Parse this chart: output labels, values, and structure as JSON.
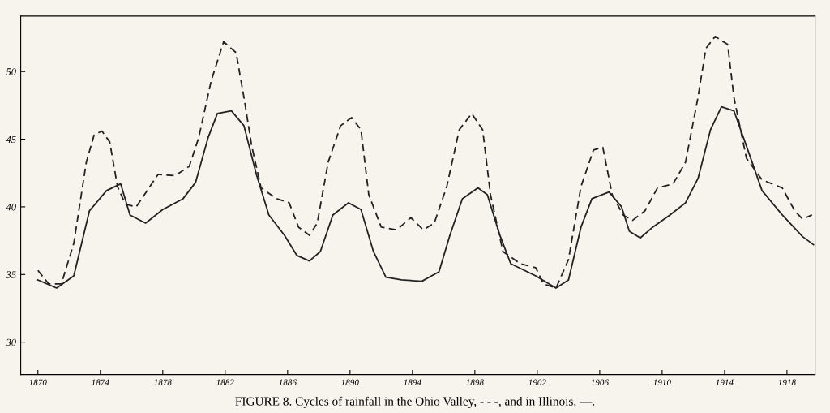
{
  "chart_data": {
    "type": "line",
    "annotations": [
      "FIGURE 8. Cycles of rainfall in the Ohio Valley, - - -, and in Illinois, —."
    ],
    "xlim": [
      1868.9,
      1919.8
    ],
    "ylim": [
      27.6,
      54.1
    ],
    "xticks": [
      1870,
      1874,
      1878,
      1882,
      1886,
      1890,
      1894,
      1898,
      1902,
      1906,
      1910,
      1914,
      1918
    ],
    "yticks": [
      30,
      35,
      40,
      45,
      50
    ],
    "series": [
      {
        "color": "#222222",
        "line_style": "dashed",
        "x": [
          1870.0,
          1870.7,
          1871.5,
          1872.3,
          1873.1,
          1873.6,
          1874.1,
          1874.6,
          1875.1,
          1875.6,
          1876.3,
          1877.0,
          1877.7,
          1878.8,
          1879.7,
          1880.3,
          1881.1,
          1881.9,
          1882.7,
          1883.2,
          1883.7,
          1884.3,
          1885.3,
          1886.1,
          1886.7,
          1887.4,
          1887.9,
          1888.6,
          1889.4,
          1890.1,
          1890.7,
          1891.2,
          1892.0,
          1893.0,
          1893.9,
          1894.7,
          1895.4,
          1896.2,
          1897.0,
          1897.8,
          1898.5,
          1899.0,
          1899.8,
          1900.9,
          1901.9,
          1902.4,
          1903.2,
          1904.0,
          1904.8,
          1905.6,
          1906.2,
          1906.8,
          1907.5,
          1908.1,
          1908.9,
          1909.7,
          1910.7,
          1911.5,
          1912.3,
          1912.8,
          1913.4,
          1914.2,
          1914.6,
          1915.4,
          1916.4,
          1917.7,
          1918.5,
          1919.0,
          1919.6
        ],
        "values": [
          35.3,
          34.3,
          34.3,
          37.3,
          43.3,
          45.3,
          45.6,
          44.8,
          41.5,
          40.2,
          40.0,
          41.2,
          42.4,
          42.3,
          43.0,
          45.1,
          49.3,
          52.2,
          51.4,
          48.1,
          44.5,
          41.4,
          40.6,
          40.3,
          38.5,
          37.9,
          38.8,
          43.3,
          46.0,
          46.6,
          45.7,
          40.9,
          38.5,
          38.3,
          39.2,
          38.3,
          38.8,
          41.5,
          45.7,
          46.9,
          45.7,
          40.9,
          36.7,
          35.8,
          35.5,
          34.3,
          34.0,
          36.1,
          41.5,
          44.2,
          44.4,
          40.9,
          39.4,
          39.0,
          39.7,
          41.4,
          41.7,
          43.3,
          48.1,
          51.7,
          52.6,
          52.0,
          48.1,
          43.6,
          42.0,
          41.4,
          39.7,
          39.1,
          39.4
        ]
      },
      {
        "color": "#222222",
        "line_style": "solid",
        "x": [
          1870.0,
          1871.2,
          1872.3,
          1873.3,
          1874.4,
          1875.3,
          1875.9,
          1876.9,
          1878.0,
          1879.3,
          1880.1,
          1880.9,
          1881.5,
          1882.4,
          1883.2,
          1884.0,
          1884.8,
          1885.8,
          1886.6,
          1887.4,
          1888.1,
          1888.9,
          1889.9,
          1890.7,
          1891.5,
          1892.3,
          1893.3,
          1894.6,
          1895.7,
          1896.4,
          1897.2,
          1898.2,
          1898.8,
          1899.6,
          1900.3,
          1901.9,
          1903.2,
          1904.0,
          1904.8,
          1905.5,
          1906.6,
          1907.4,
          1907.9,
          1908.6,
          1909.4,
          1910.5,
          1911.5,
          1912.3,
          1913.1,
          1913.8,
          1914.6,
          1915.4,
          1916.4,
          1917.7,
          1919.0,
          1919.7
        ],
        "values": [
          34.6,
          34.0,
          34.9,
          39.7,
          41.2,
          41.7,
          39.4,
          38.8,
          39.8,
          40.6,
          41.8,
          45.1,
          46.9,
          47.1,
          46.0,
          42.4,
          39.4,
          37.9,
          36.4,
          36.0,
          36.7,
          39.4,
          40.3,
          39.8,
          36.7,
          34.8,
          34.6,
          34.5,
          35.2,
          37.9,
          40.6,
          41.4,
          40.9,
          37.9,
          35.8,
          34.9,
          34.0,
          34.6,
          38.5,
          40.6,
          41.1,
          40.0,
          38.2,
          37.7,
          38.5,
          39.4,
          40.3,
          42.1,
          45.7,
          47.4,
          47.1,
          44.5,
          41.2,
          39.4,
          37.8,
          37.2
        ]
      }
    ]
  }
}
